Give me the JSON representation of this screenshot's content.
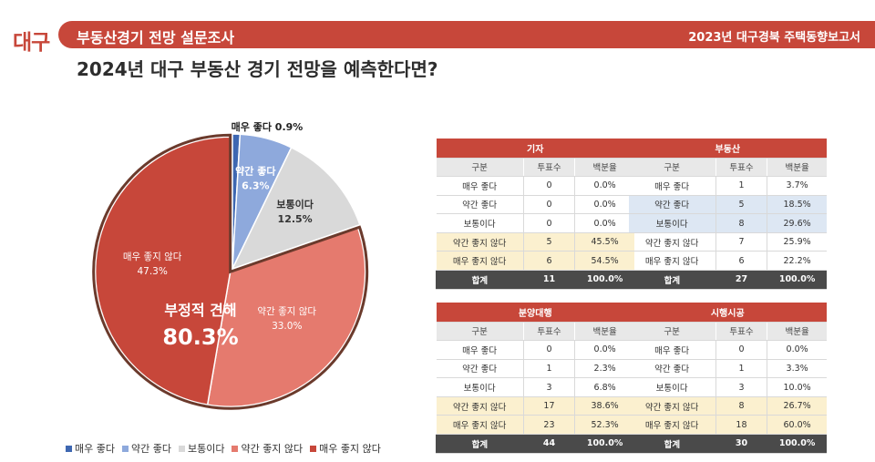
{
  "header": {
    "brand": "대구",
    "title": "부동산경기 전망 설문조사",
    "right": "2023년 대구경북 주택동향보고서"
  },
  "question": "2024년 대구 부동산 경기 전망을 예측한다면?",
  "chart_data": {
    "type": "pie",
    "categories": [
      "매우 좋다",
      "약간 좋다",
      "보통이다",
      "약간 좋지 않다",
      "매우 좋지 않다"
    ],
    "values": [
      0.9,
      6.3,
      12.5,
      33.0,
      47.3
    ],
    "colors": [
      "#3e67b1",
      "#8ea9dc",
      "#d9d9d9",
      "#e57a6e",
      "#c7473a"
    ],
    "slice_labels": [
      {
        "name": "매우 좋다",
        "value": "0.9%"
      },
      {
        "name": "약간 좋다",
        "value": "6.3%"
      },
      {
        "name": "보통이다",
        "value": "12.5%"
      },
      {
        "name": "약간 좋지 않다",
        "value": "33.0%"
      },
      {
        "name": "매우 좋지 않다",
        "value": "47.3%"
      }
    ],
    "callout_top": "매우 좋다 0.9%",
    "annotation": {
      "label": "부정적 견해",
      "value": "80.3%"
    },
    "legend_position": "bottom"
  },
  "tables": [
    {
      "title": "기자",
      "headers": [
        "구분",
        "투표수",
        "백분율"
      ],
      "rows": [
        {
          "cells": [
            "매우 좋다",
            "0",
            "0.0%"
          ],
          "hl": ""
        },
        {
          "cells": [
            "약간 좋다",
            "0",
            "0.0%"
          ],
          "hl": ""
        },
        {
          "cells": [
            "보통이다",
            "0",
            "0.0%"
          ],
          "hl": ""
        },
        {
          "cells": [
            "약간 좋지 않다",
            "5",
            "45.5%"
          ],
          "hl": "yellow"
        },
        {
          "cells": [
            "매우 좋지 않다",
            "6",
            "54.5%"
          ],
          "hl": "yellow"
        }
      ],
      "total": [
        "합계",
        "11",
        "100.0%"
      ]
    },
    {
      "title": "부동산",
      "headers": [
        "구분",
        "투표수",
        "백분율"
      ],
      "rows": [
        {
          "cells": [
            "매우 좋다",
            "1",
            "3.7%"
          ],
          "hl": ""
        },
        {
          "cells": [
            "약간 좋다",
            "5",
            "18.5%"
          ],
          "hl": "blue"
        },
        {
          "cells": [
            "보통이다",
            "8",
            "29.6%"
          ],
          "hl": "blue"
        },
        {
          "cells": [
            "약간 좋지 않다",
            "7",
            "25.9%"
          ],
          "hl": ""
        },
        {
          "cells": [
            "매우 좋지 않다",
            "6",
            "22.2%"
          ],
          "hl": ""
        }
      ],
      "total": [
        "합계",
        "27",
        "100.0%"
      ]
    },
    {
      "title": "분양대행",
      "headers": [
        "구분",
        "투표수",
        "백분율"
      ],
      "rows": [
        {
          "cells": [
            "매우 좋다",
            "0",
            "0.0%"
          ],
          "hl": ""
        },
        {
          "cells": [
            "약간 좋다",
            "1",
            "2.3%"
          ],
          "hl": ""
        },
        {
          "cells": [
            "보통이다",
            "3",
            "6.8%"
          ],
          "hl": ""
        },
        {
          "cells": [
            "약간 좋지 않다",
            "17",
            "38.6%"
          ],
          "hl": "yellow"
        },
        {
          "cells": [
            "매우 좋지 않다",
            "23",
            "52.3%"
          ],
          "hl": "yellow"
        }
      ],
      "total": [
        "합계",
        "44",
        "100.0%"
      ]
    },
    {
      "title": "시행시공",
      "headers": [
        "구분",
        "투표수",
        "백분율"
      ],
      "rows": [
        {
          "cells": [
            "매우 좋다",
            "0",
            "0.0%"
          ],
          "hl": ""
        },
        {
          "cells": [
            "약간 좋다",
            "1",
            "3.3%"
          ],
          "hl": ""
        },
        {
          "cells": [
            "보통이다",
            "3",
            "10.0%"
          ],
          "hl": ""
        },
        {
          "cells": [
            "약간 좋지 않다",
            "8",
            "26.7%"
          ],
          "hl": "yellow"
        },
        {
          "cells": [
            "매우 좋지 않다",
            "18",
            "60.0%"
          ],
          "hl": "yellow"
        }
      ],
      "total": [
        "합계",
        "30",
        "100.0%"
      ]
    }
  ]
}
